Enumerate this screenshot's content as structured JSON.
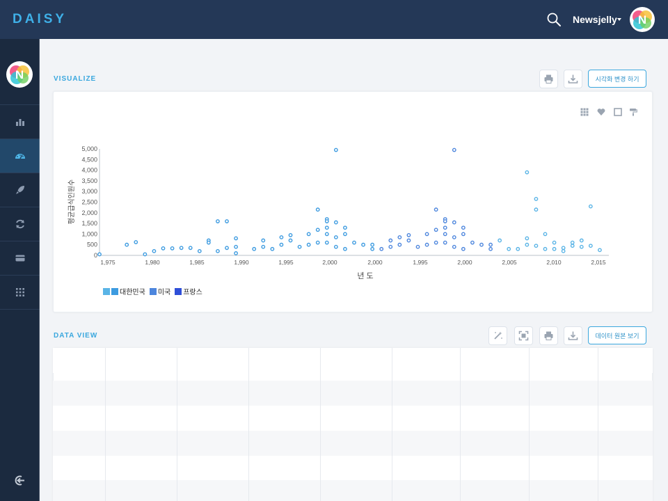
{
  "app": {
    "logo": "DAISY",
    "user_name": "Newsjelly"
  },
  "sidebar": {
    "items": [
      {
        "name": "bar-chart-icon",
        "active": false
      },
      {
        "name": "dashboard-gauge-icon",
        "active": true
      },
      {
        "name": "rocket-icon",
        "active": false
      },
      {
        "name": "refresh-icon",
        "active": false
      },
      {
        "name": "card-icon",
        "active": false
      },
      {
        "name": "grid-dots-icon",
        "active": false
      }
    ],
    "logout_icon": "logout-icon"
  },
  "visualize": {
    "title": "VISUALIZE",
    "change_button": "시각화 변경 하기",
    "print_icon": "print-icon",
    "download_icon": "download-icon",
    "chart_tools": [
      "grid-icon",
      "heart-icon",
      "square-icon",
      "paint-roller-icon"
    ]
  },
  "chart_data": {
    "type": "scatter",
    "title": "",
    "xlabel": "년 도",
    "ylabel": "평균급식인원수",
    "xticks": [
      "1,975",
      "1,980",
      "1,985",
      "1,990",
      "1,995",
      "2,000",
      "2,000",
      "1,995",
      "2,000",
      "2,005",
      "2,010",
      "2,015"
    ],
    "yticks": [
      "5,000",
      "4,500",
      "4,000",
      "3,500",
      "3,000",
      "2,500",
      "2,000",
      "1,500",
      "1,000",
      "500",
      "0"
    ],
    "ylim": [
      0,
      5000
    ],
    "legend": [
      "대한민국",
      "미국",
      "프랑스"
    ],
    "legend_placement": "bottom-left",
    "colors": {
      "c1": "#5ab4e6",
      "c2": "#3d9be0",
      "c3": "#4d86dd",
      "c4": "#2f4fd8"
    },
    "series": [
      {
        "name": "대한민국",
        "points": [
          [
            1975,
            50
          ],
          [
            1978,
            500
          ],
          [
            1979,
            620
          ],
          [
            1980,
            50
          ],
          [
            1981,
            200
          ],
          [
            1982,
            330
          ],
          [
            1983,
            330
          ],
          [
            1984,
            350
          ],
          [
            1985,
            350
          ],
          [
            1986,
            200
          ],
          [
            1987,
            700
          ],
          [
            1987,
            600
          ],
          [
            1988,
            1600
          ],
          [
            1988,
            200
          ],
          [
            1989,
            1600
          ],
          [
            1989,
            350
          ],
          [
            1990,
            800
          ],
          [
            1990,
            400
          ],
          [
            1990,
            100
          ],
          [
            1992,
            300
          ],
          [
            1993,
            700
          ],
          [
            1993,
            400
          ],
          [
            1994,
            300
          ],
          [
            1995,
            850
          ],
          [
            1995,
            500
          ],
          [
            1996,
            950
          ],
          [
            1996,
            700
          ],
          [
            1997,
            400
          ],
          [
            1998,
            1000
          ],
          [
            1998,
            500
          ],
          [
            1999,
            2150
          ],
          [
            1999,
            1200
          ],
          [
            1999,
            600
          ],
          [
            2000,
            1700
          ],
          [
            2000,
            1600
          ],
          [
            2000,
            1300
          ],
          [
            2000,
            1000
          ],
          [
            2000,
            600
          ],
          [
            2001,
            4950
          ],
          [
            2001,
            1550
          ],
          [
            2001,
            850
          ],
          [
            2001,
            400
          ],
          [
            2002,
            1300
          ],
          [
            2002,
            1000
          ],
          [
            2002,
            300
          ],
          [
            2003,
            600
          ],
          [
            2004,
            500
          ],
          [
            2005,
            500
          ],
          [
            2005,
            300
          ]
        ]
      },
      {
        "name": "미국",
        "points": [
          [
            2006,
            300
          ],
          [
            2007,
            700
          ],
          [
            2007,
            400
          ],
          [
            2008,
            850
          ],
          [
            2008,
            500
          ],
          [
            2009,
            950
          ],
          [
            2009,
            700
          ],
          [
            2010,
            400
          ],
          [
            2011,
            1000
          ],
          [
            2011,
            500
          ],
          [
            2012,
            2150
          ],
          [
            2012,
            1200
          ],
          [
            2012,
            600
          ],
          [
            2013,
            1700
          ],
          [
            2013,
            1600
          ],
          [
            2013,
            1300
          ],
          [
            2013,
            1000
          ],
          [
            2013,
            600
          ],
          [
            2014,
            4950
          ],
          [
            2014,
            1550
          ],
          [
            2014,
            850
          ],
          [
            2014,
            400
          ],
          [
            2015,
            1300
          ],
          [
            2015,
            1000
          ],
          [
            2015,
            300
          ],
          [
            2016,
            600
          ],
          [
            2017,
            500
          ],
          [
            2018,
            500
          ],
          [
            2018,
            300
          ]
        ]
      },
      {
        "name": "프랑스",
        "points": [
          [
            2019,
            700
          ],
          [
            2020,
            300
          ],
          [
            2021,
            300
          ],
          [
            2022,
            3900
          ],
          [
            2022,
            800
          ],
          [
            2022,
            500
          ],
          [
            2023,
            2650
          ],
          [
            2023,
            2150
          ],
          [
            2023,
            450
          ],
          [
            2024,
            1000
          ],
          [
            2024,
            300
          ],
          [
            2025,
            600
          ],
          [
            2025,
            300
          ],
          [
            2026,
            350
          ],
          [
            2026,
            200
          ],
          [
            2027,
            600
          ],
          [
            2027,
            450
          ],
          [
            2028,
            700
          ],
          [
            2028,
            400
          ],
          [
            2029,
            2300
          ],
          [
            2029,
            450
          ],
          [
            2030,
            250
          ]
        ]
      }
    ]
  },
  "dataview": {
    "title": "DATA VIEW",
    "raw_button": "데이터 원본 보기",
    "icons": [
      "magic-wand-icon",
      "fullscreen-icon",
      "print-icon",
      "download-icon"
    ]
  }
}
